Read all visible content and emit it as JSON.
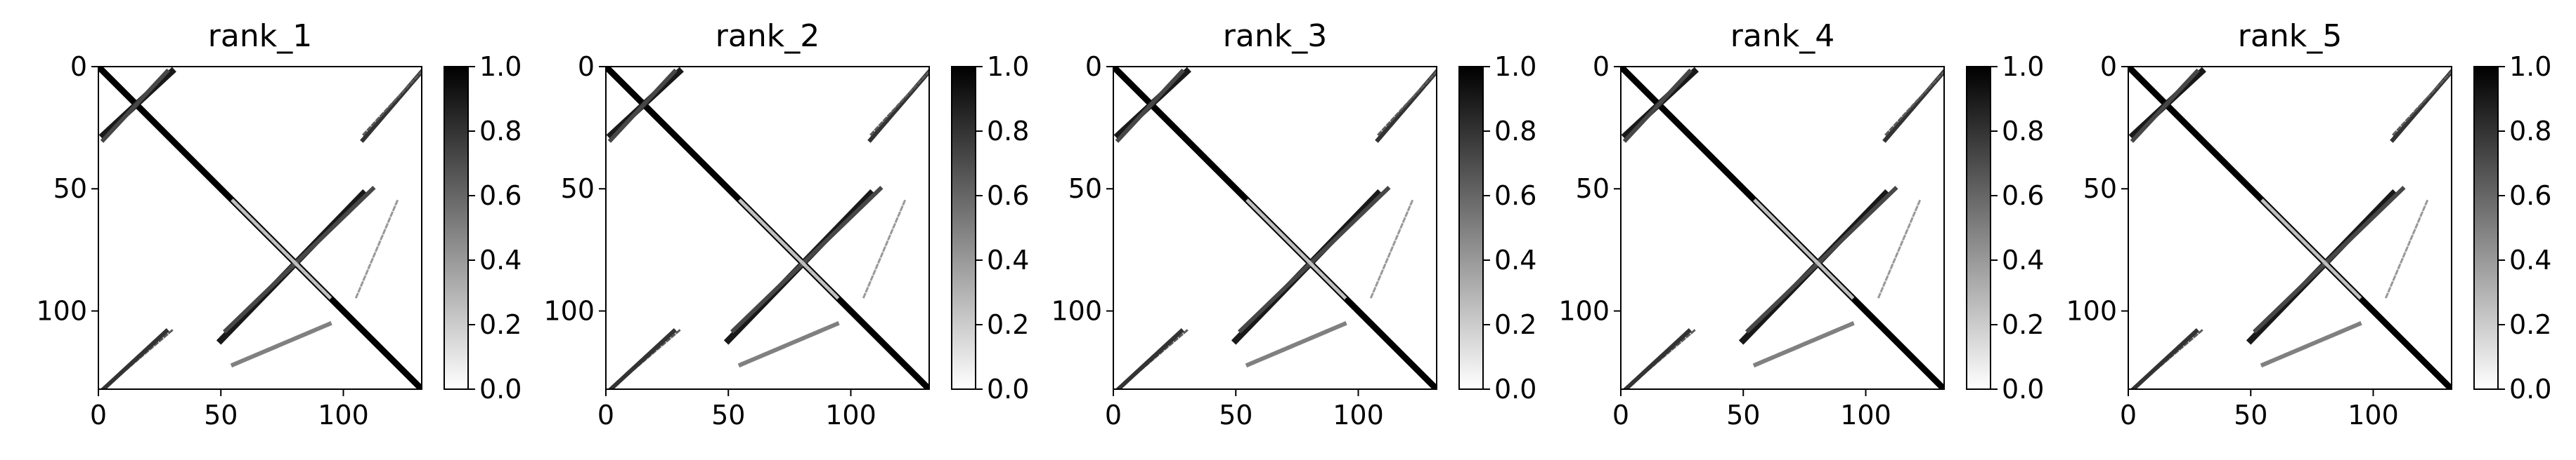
{
  "chart_data": [
    {
      "type": "heatmap",
      "title": "rank_1",
      "xlabel": "",
      "ylabel": "",
      "xlim": [
        0,
        132
      ],
      "ylim": [
        132,
        0
      ],
      "x_ticks": [
        0,
        50,
        100
      ],
      "y_ticks": [
        0,
        50,
        100
      ],
      "colorbar": {
        "min": 0.0,
        "max": 1.0,
        "ticks": [
          "0.0",
          "0.2",
          "0.4",
          "0.6",
          "0.8",
          "1.0"
        ],
        "colormap": "gray_r"
      },
      "structures": [
        {
          "name": "main diagonal",
          "x": [
            0,
            132
          ],
          "y": [
            0,
            132
          ],
          "value": 1.0
        },
        {
          "name": "anti-diagonal helix",
          "x": [
            50,
            108
          ],
          "y": [
            112,
            52
          ],
          "value": 0.9
        },
        {
          "name": "upper-left hairpin",
          "x": [
            2,
            30
          ],
          "y": [
            28,
            2
          ],
          "value": 0.9
        },
        {
          "name": "upper-right contacts",
          "x": [
            108,
            132
          ],
          "y": [
            30,
            2
          ],
          "value": 0.8
        },
        {
          "name": "lower-left contacts",
          "x": [
            2,
            28
          ],
          "y": [
            132,
            108
          ],
          "value": 0.8
        },
        {
          "name": "lower-middle contacts",
          "x": [
            55,
            95
          ],
          "y": [
            122,
            105
          ],
          "value": 0.5
        },
        {
          "name": "central loop",
          "x": [
            55,
            95
          ],
          "y": [
            55,
            95
          ],
          "value": 0.3
        }
      ]
    },
    {
      "type": "heatmap",
      "title": "rank_2",
      "xlabel": "",
      "ylabel": "",
      "xlim": [
        0,
        132
      ],
      "ylim": [
        132,
        0
      ],
      "x_ticks": [
        0,
        50,
        100
      ],
      "y_ticks": [
        0,
        50,
        100
      ],
      "colorbar": {
        "min": 0.0,
        "max": 1.0,
        "ticks": [
          "0.0",
          "0.2",
          "0.4",
          "0.6",
          "0.8",
          "1.0"
        ],
        "colormap": "gray_r"
      },
      "structures": [
        {
          "name": "main diagonal",
          "x": [
            0,
            132
          ],
          "y": [
            0,
            132
          ],
          "value": 1.0
        },
        {
          "name": "anti-diagonal helix",
          "x": [
            50,
            108
          ],
          "y": [
            112,
            52
          ],
          "value": 0.9
        },
        {
          "name": "upper-left hairpin",
          "x": [
            2,
            30
          ],
          "y": [
            28,
            2
          ],
          "value": 0.9
        },
        {
          "name": "upper-right contacts",
          "x": [
            108,
            132
          ],
          "y": [
            30,
            2
          ],
          "value": 0.8
        },
        {
          "name": "lower-left contacts",
          "x": [
            2,
            28
          ],
          "y": [
            132,
            108
          ],
          "value": 0.8
        },
        {
          "name": "lower-middle contacts",
          "x": [
            55,
            95
          ],
          "y": [
            122,
            105
          ],
          "value": 0.5
        },
        {
          "name": "central loop",
          "x": [
            55,
            95
          ],
          "y": [
            55,
            95
          ],
          "value": 0.3
        }
      ]
    },
    {
      "type": "heatmap",
      "title": "rank_3",
      "xlabel": "",
      "ylabel": "",
      "xlim": [
        0,
        132
      ],
      "ylim": [
        132,
        0
      ],
      "x_ticks": [
        0,
        50,
        100
      ],
      "y_ticks": [
        0,
        50,
        100
      ],
      "colorbar": {
        "min": 0.0,
        "max": 1.0,
        "ticks": [
          "0.0",
          "0.2",
          "0.4",
          "0.6",
          "0.8",
          "1.0"
        ],
        "colormap": "gray_r"
      },
      "structures": [
        {
          "name": "main diagonal",
          "x": [
            0,
            132
          ],
          "y": [
            0,
            132
          ],
          "value": 1.0
        },
        {
          "name": "anti-diagonal helix",
          "x": [
            50,
            108
          ],
          "y": [
            112,
            52
          ],
          "value": 0.9
        },
        {
          "name": "upper-left hairpin",
          "x": [
            2,
            30
          ],
          "y": [
            28,
            2
          ],
          "value": 0.9
        },
        {
          "name": "upper-right contacts",
          "x": [
            108,
            132
          ],
          "y": [
            30,
            2
          ],
          "value": 0.8
        },
        {
          "name": "lower-left contacts",
          "x": [
            2,
            28
          ],
          "y": [
            132,
            108
          ],
          "value": 0.8
        },
        {
          "name": "lower-middle contacts",
          "x": [
            55,
            95
          ],
          "y": [
            122,
            105
          ],
          "value": 0.5
        },
        {
          "name": "central loop",
          "x": [
            55,
            95
          ],
          "y": [
            55,
            95
          ],
          "value": 0.3
        }
      ]
    },
    {
      "type": "heatmap",
      "title": "rank_4",
      "xlabel": "",
      "ylabel": "",
      "xlim": [
        0,
        132
      ],
      "ylim": [
        132,
        0
      ],
      "x_ticks": [
        0,
        50,
        100
      ],
      "y_ticks": [
        0,
        50,
        100
      ],
      "colorbar": {
        "min": 0.0,
        "max": 1.0,
        "ticks": [
          "0.0",
          "0.2",
          "0.4",
          "0.6",
          "0.8",
          "1.0"
        ],
        "colormap": "gray_r"
      },
      "structures": [
        {
          "name": "main diagonal",
          "x": [
            0,
            132
          ],
          "y": [
            0,
            132
          ],
          "value": 1.0
        },
        {
          "name": "anti-diagonal helix",
          "x": [
            50,
            108
          ],
          "y": [
            112,
            52
          ],
          "value": 0.9
        },
        {
          "name": "upper-left hairpin",
          "x": [
            2,
            30
          ],
          "y": [
            28,
            2
          ],
          "value": 0.9
        },
        {
          "name": "upper-right contacts",
          "x": [
            108,
            132
          ],
          "y": [
            30,
            2
          ],
          "value": 0.8
        },
        {
          "name": "lower-left contacts",
          "x": [
            2,
            28
          ],
          "y": [
            132,
            108
          ],
          "value": 0.8
        },
        {
          "name": "lower-middle contacts",
          "x": [
            55,
            95
          ],
          "y": [
            122,
            105
          ],
          "value": 0.5
        },
        {
          "name": "central loop",
          "x": [
            55,
            95
          ],
          "y": [
            55,
            95
          ],
          "value": 0.3
        }
      ]
    },
    {
      "type": "heatmap",
      "title": "rank_5",
      "xlabel": "",
      "ylabel": "",
      "xlim": [
        0,
        132
      ],
      "ylim": [
        132,
        0
      ],
      "x_ticks": [
        0,
        50,
        100
      ],
      "y_ticks": [
        0,
        50,
        100
      ],
      "colorbar": {
        "min": 0.0,
        "max": 1.0,
        "ticks": [
          "0.0",
          "0.2",
          "0.4",
          "0.6",
          "0.8",
          "1.0"
        ],
        "colormap": "gray_r"
      },
      "structures": [
        {
          "name": "main diagonal",
          "x": [
            0,
            132
          ],
          "y": [
            0,
            132
          ],
          "value": 1.0
        },
        {
          "name": "anti-diagonal helix",
          "x": [
            50,
            108
          ],
          "y": [
            112,
            52
          ],
          "value": 0.9
        },
        {
          "name": "upper-left hairpin",
          "x": [
            2,
            30
          ],
          "y": [
            28,
            2
          ],
          "value": 0.9
        },
        {
          "name": "upper-right contacts",
          "x": [
            108,
            132
          ],
          "y": [
            30,
            2
          ],
          "value": 0.8
        },
        {
          "name": "lower-left contacts",
          "x": [
            2,
            28
          ],
          "y": [
            132,
            108
          ],
          "value": 0.8
        },
        {
          "name": "lower-middle contacts",
          "x": [
            55,
            95
          ],
          "y": [
            122,
            105
          ],
          "value": 0.5
        },
        {
          "name": "central loop",
          "x": [
            55,
            95
          ],
          "y": [
            55,
            95
          ],
          "value": 0.3
        }
      ]
    }
  ]
}
